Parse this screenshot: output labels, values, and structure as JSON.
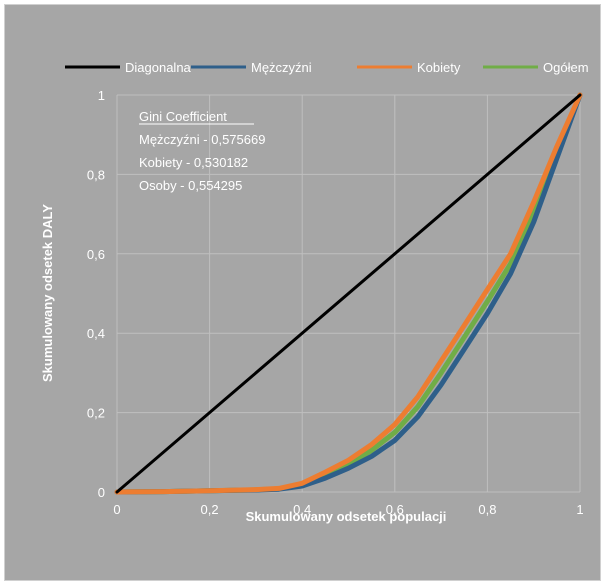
{
  "chart_data": {
    "type": "line",
    "title": "",
    "xlabel": "Skumulowany odsetek populacji",
    "ylabel": "Skumulowany odsetek DALY",
    "xlim": [
      0,
      1
    ],
    "ylim": [
      0,
      1
    ],
    "x_ticks": [
      "0",
      "0,2",
      "0,4",
      "0,6",
      "0,8",
      "1"
    ],
    "y_ticks": [
      "0",
      "0,2",
      "0,4",
      "0,6",
      "0,8",
      "1"
    ],
    "grid": true,
    "legend_position": "top",
    "series": [
      {
        "name": "Diagonalna",
        "color": "#000000",
        "points": [
          [
            0,
            0
          ],
          [
            1,
            1
          ]
        ]
      },
      {
        "name": "Mężczyźni",
        "color": "#2e5f8a",
        "points": [
          [
            0,
            0
          ],
          [
            0.1,
            0.001
          ],
          [
            0.2,
            0.003
          ],
          [
            0.3,
            0.005
          ],
          [
            0.35,
            0.007
          ],
          [
            0.4,
            0.015
          ],
          [
            0.45,
            0.035
          ],
          [
            0.5,
            0.06
          ],
          [
            0.55,
            0.09
          ],
          [
            0.6,
            0.13
          ],
          [
            0.65,
            0.19
          ],
          [
            0.7,
            0.27
          ],
          [
            0.75,
            0.36
          ],
          [
            0.8,
            0.45
          ],
          [
            0.85,
            0.55
          ],
          [
            0.9,
            0.68
          ],
          [
            0.95,
            0.84
          ],
          [
            1,
            1
          ]
        ]
      },
      {
        "name": "Kobiety",
        "color": "#ed7d31",
        "points": [
          [
            0,
            0
          ],
          [
            0.1,
            0.001
          ],
          [
            0.2,
            0.003
          ],
          [
            0.3,
            0.006
          ],
          [
            0.35,
            0.009
          ],
          [
            0.4,
            0.022
          ],
          [
            0.45,
            0.05
          ],
          [
            0.5,
            0.08
          ],
          [
            0.55,
            0.12
          ],
          [
            0.6,
            0.17
          ],
          [
            0.65,
            0.24
          ],
          [
            0.7,
            0.33
          ],
          [
            0.75,
            0.42
          ],
          [
            0.8,
            0.51
          ],
          [
            0.85,
            0.6
          ],
          [
            0.9,
            0.73
          ],
          [
            0.95,
            0.87
          ],
          [
            1,
            1
          ]
        ]
      },
      {
        "name": "Ogółem",
        "color": "#70ad47",
        "points": [
          [
            0,
            0
          ],
          [
            0.1,
            0.001
          ],
          [
            0.2,
            0.003
          ],
          [
            0.3,
            0.0055
          ],
          [
            0.35,
            0.008
          ],
          [
            0.4,
            0.018
          ],
          [
            0.45,
            0.042
          ],
          [
            0.5,
            0.07
          ],
          [
            0.55,
            0.105
          ],
          [
            0.6,
            0.15
          ],
          [
            0.65,
            0.215
          ],
          [
            0.7,
            0.3
          ],
          [
            0.75,
            0.39
          ],
          [
            0.8,
            0.48
          ],
          [
            0.85,
            0.575
          ],
          [
            0.9,
            0.705
          ],
          [
            0.95,
            0.855
          ],
          [
            1,
            1
          ]
        ]
      }
    ],
    "annotation": {
      "title": "Gini Coefficient",
      "lines": [
        "Mężczyźni - 0,575669",
        "Kobiety - 0,530182",
        "Osoby - 0,554295"
      ]
    }
  }
}
